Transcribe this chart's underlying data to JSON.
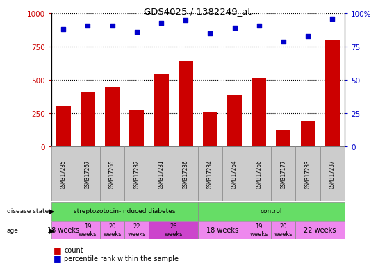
{
  "title": "GDS4025 / 1382249_at",
  "samples": [
    "GSM317235",
    "GSM317267",
    "GSM317265",
    "GSM317232",
    "GSM317231",
    "GSM317236",
    "GSM317234",
    "GSM317264",
    "GSM317266",
    "GSM317177",
    "GSM317233",
    "GSM317237"
  ],
  "counts": [
    310,
    415,
    450,
    270,
    550,
    640,
    255,
    385,
    510,
    120,
    195,
    800
  ],
  "percentiles": [
    88,
    91,
    91,
    86,
    93,
    95,
    85,
    89,
    91,
    79,
    83,
    96
  ],
  "bar_color": "#cc0000",
  "dot_color": "#0000cc",
  "tick_color_left": "#cc0000",
  "tick_color_right": "#0000cc",
  "ylim_left": [
    0,
    1000
  ],
  "ylim_right": [
    0,
    100
  ],
  "yticks_left": [
    0,
    250,
    500,
    750,
    1000
  ],
  "yticks_right": [
    0,
    25,
    50,
    75,
    100
  ],
  "ytick_labels_right": [
    "0",
    "25",
    "50",
    "75",
    "100%"
  ],
  "green_color": "#66dd66",
  "pink_light": "#ee88ee",
  "pink_dark": "#cc44cc",
  "gray_cell": "#cccccc",
  "age_groups": [
    {
      "start": 0,
      "end": 1,
      "label": "18 weeks",
      "color": "#ee88ee",
      "fontsize": 7
    },
    {
      "start": 1,
      "end": 2,
      "label": "19\nweeks",
      "color": "#ee88ee",
      "fontsize": 6
    },
    {
      "start": 2,
      "end": 3,
      "label": "20\nweeks",
      "color": "#ee88ee",
      "fontsize": 6
    },
    {
      "start": 3,
      "end": 4,
      "label": "22\nweeks",
      "color": "#ee88ee",
      "fontsize": 6
    },
    {
      "start": 4,
      "end": 6,
      "label": "26\nweeks",
      "color": "#cc44cc",
      "fontsize": 6
    },
    {
      "start": 6,
      "end": 8,
      "label": "18 weeks",
      "color": "#ee88ee",
      "fontsize": 7
    },
    {
      "start": 8,
      "end": 9,
      "label": "19\nweeks",
      "color": "#ee88ee",
      "fontsize": 6
    },
    {
      "start": 9,
      "end": 10,
      "label": "20\nweeks",
      "color": "#ee88ee",
      "fontsize": 6
    },
    {
      "start": 10,
      "end": 12,
      "label": "22 weeks",
      "color": "#ee88ee",
      "fontsize": 7
    }
  ]
}
